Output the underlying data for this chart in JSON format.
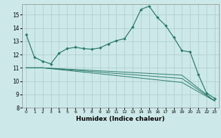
{
  "title": "",
  "xlabel": "Humidex (Indice chaleur)",
  "background_color": "#cce8e8",
  "grid_color": "#aacccc",
  "line_color": "#2a7a6a",
  "xlim": [
    -0.5,
    23.5
  ],
  "ylim": [
    8,
    15.8
  ],
  "yticks": [
    8,
    9,
    10,
    11,
    12,
    13,
    14,
    15
  ],
  "xticks": [
    0,
    1,
    2,
    3,
    4,
    5,
    6,
    7,
    8,
    9,
    10,
    11,
    12,
    13,
    14,
    15,
    16,
    17,
    18,
    19,
    20,
    21,
    22,
    23
  ],
  "series1_x": [
    0,
    1,
    2,
    3,
    4,
    5,
    6,
    7,
    8,
    9,
    10,
    11,
    12,
    13,
    14,
    15,
    16,
    17,
    18,
    19,
    20,
    21,
    22,
    23
  ],
  "series1_y": [
    13.5,
    11.8,
    11.5,
    11.3,
    12.1,
    12.45,
    12.55,
    12.45,
    12.4,
    12.5,
    12.8,
    13.05,
    13.2,
    14.1,
    15.4,
    15.65,
    14.8,
    14.2,
    13.3,
    12.3,
    12.2,
    10.5,
    9.1,
    8.7
  ],
  "series2_x": [
    0,
    2,
    19,
    23
  ],
  "series2_y": [
    11.0,
    11.0,
    10.45,
    8.5
  ],
  "series3_x": [
    0,
    2,
    19,
    23
  ],
  "series3_y": [
    11.0,
    11.0,
    10.2,
    8.5
  ],
  "series4_x": [
    0,
    2,
    19,
    23
  ],
  "series4_y": [
    11.0,
    11.0,
    9.9,
    8.5
  ]
}
